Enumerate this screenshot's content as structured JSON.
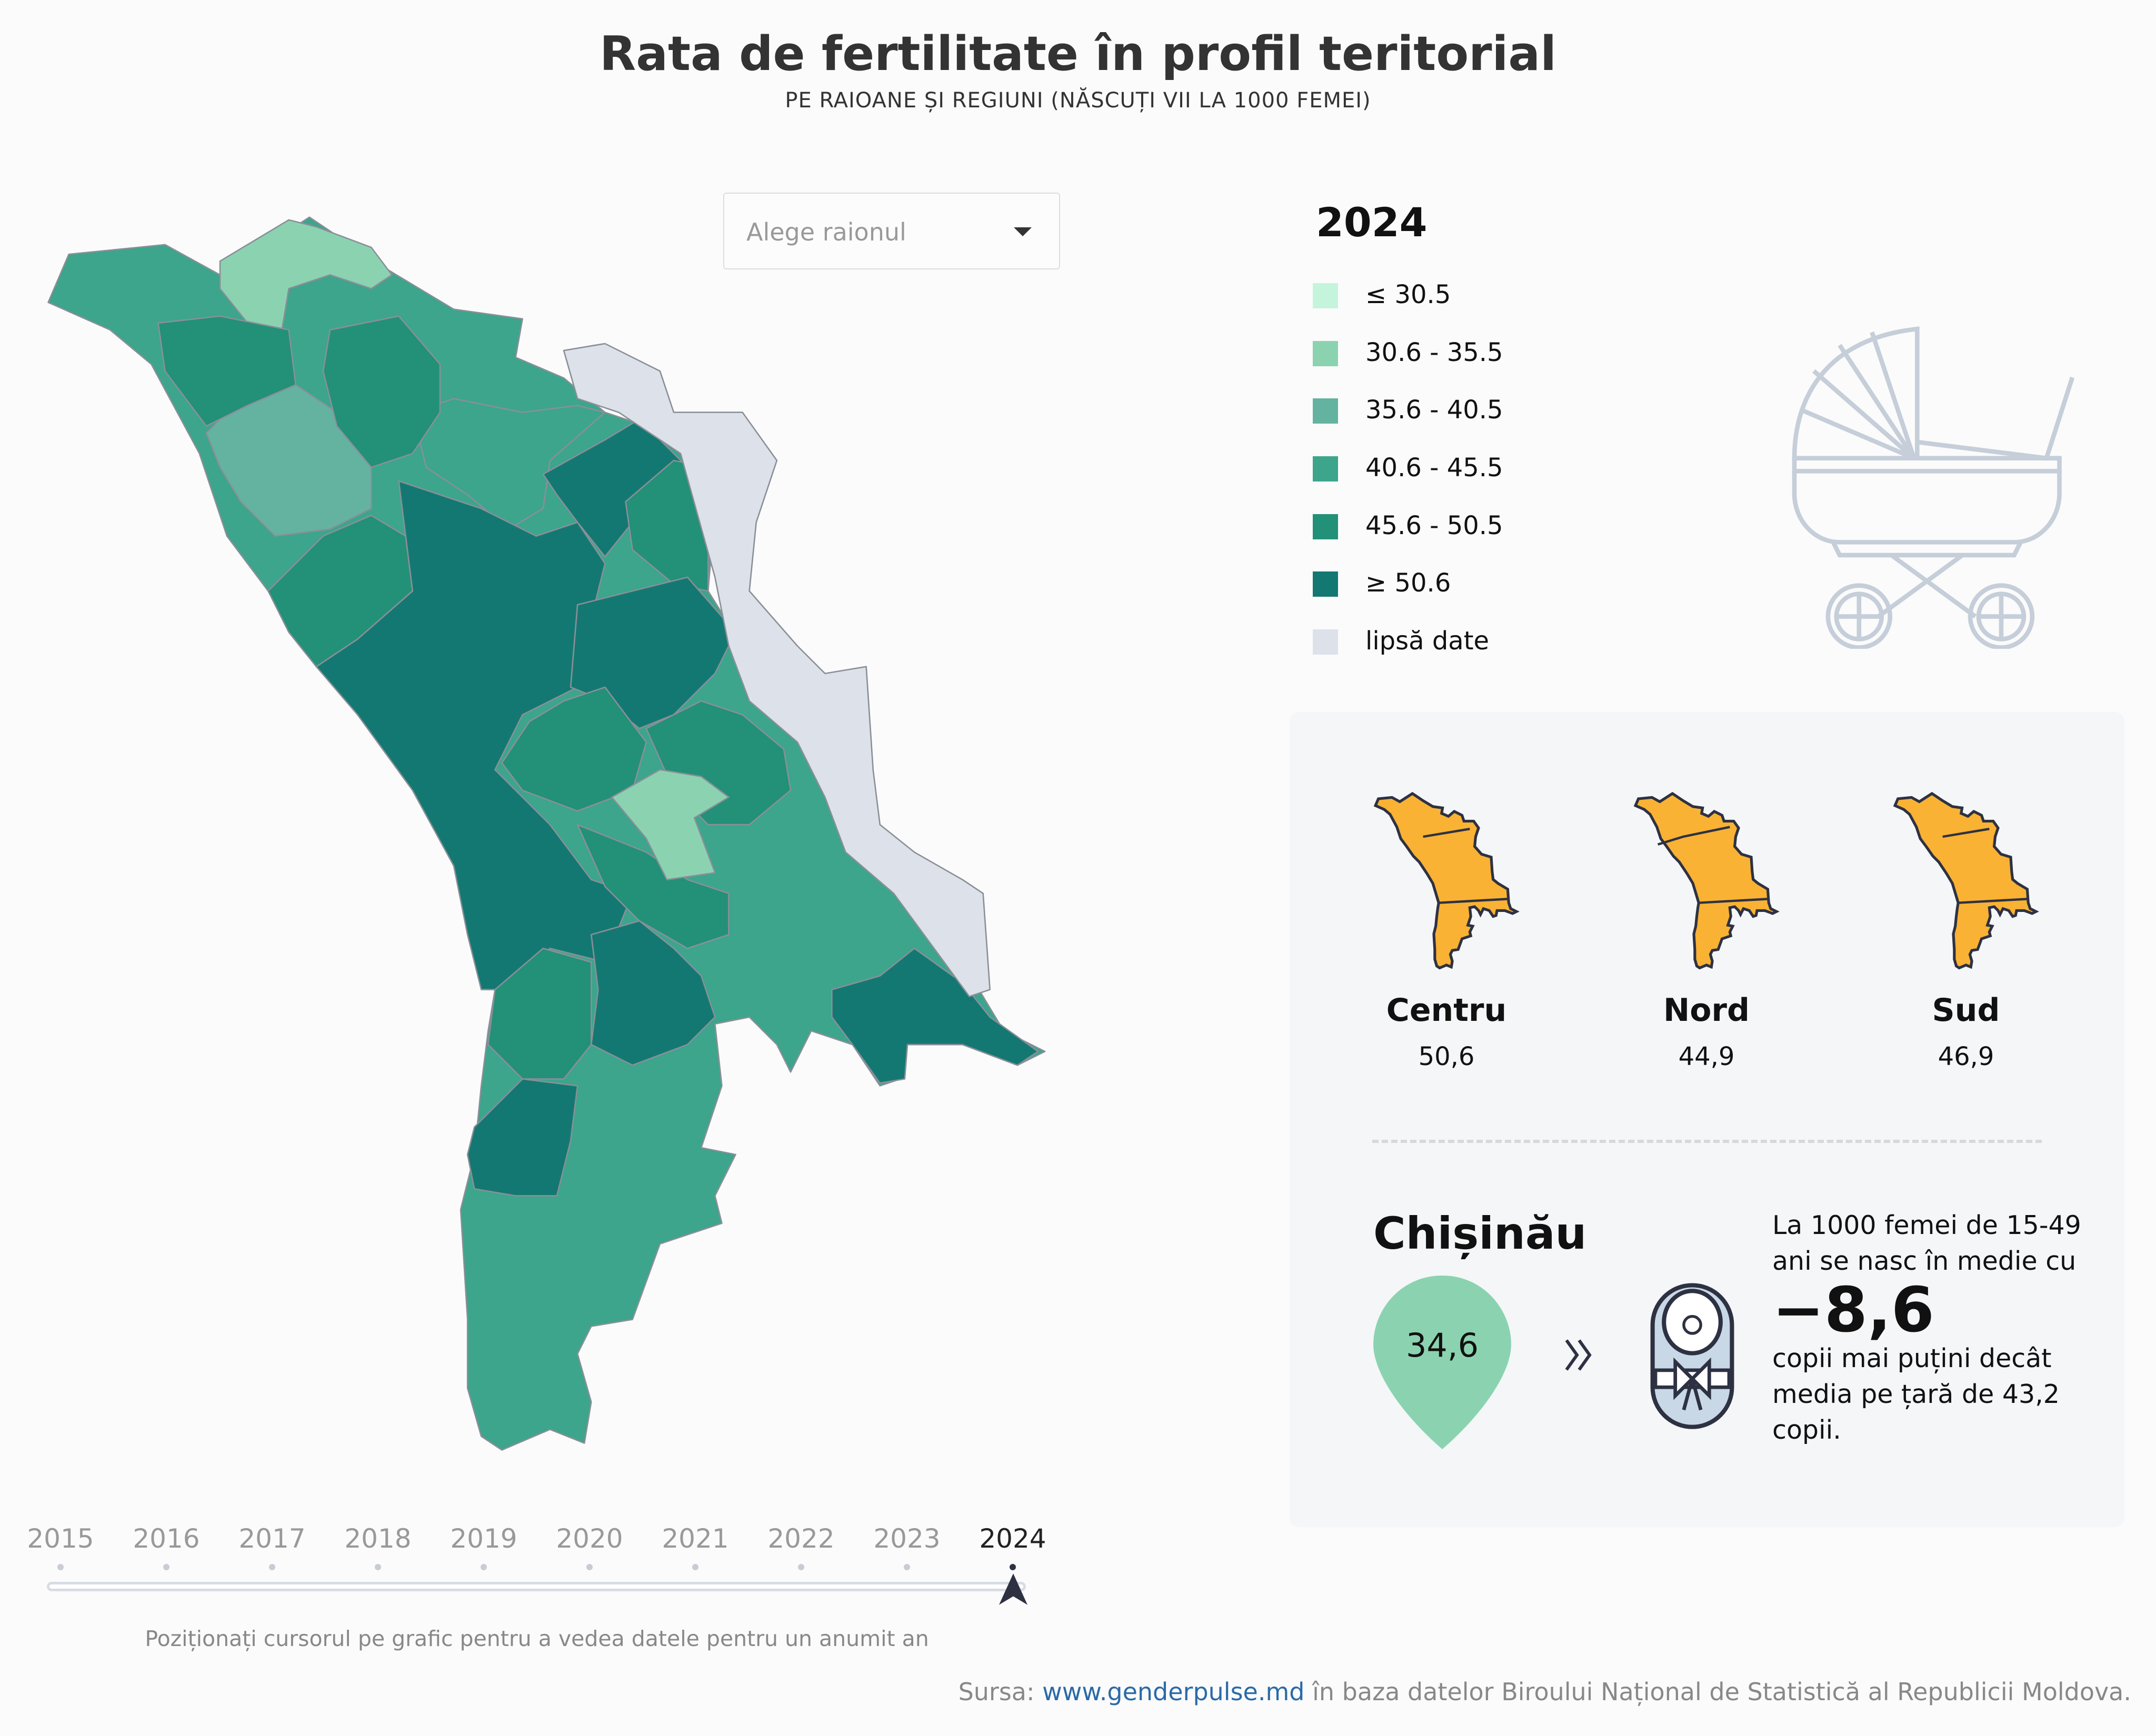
{
  "header": {
    "title": "Rata de fertilitate în profil teritorial",
    "subtitle": "PE RAIOANE ȘI REGIUNI (NĂSCUȚI VII LA 1000 FEMEI)"
  },
  "dropdown": {
    "placeholder": "Alege raionul"
  },
  "legend": {
    "year": "2024",
    "items": [
      {
        "label": "≤ 30.5",
        "color": "#c4f5dc"
      },
      {
        "label": "30.6 - 35.5",
        "color": "#8bd3b0"
      },
      {
        "label": "35.6 - 40.5",
        "color": "#63b3a0"
      },
      {
        "label": "40.6 - 45.5",
        "color": "#3ca58c"
      },
      {
        "label": "45.6 - 50.5",
        "color": "#239078"
      },
      {
        "label": "≥ 50.6",
        "color": "#147872"
      },
      {
        "label": "lipsă date",
        "color": "#dde1ea"
      }
    ]
  },
  "regions": [
    {
      "name": "Centru",
      "value": "50,6"
    },
    {
      "name": "Nord",
      "value": "44,9"
    },
    {
      "name": "Sud",
      "value": "46,9"
    }
  ],
  "highlight_color": "#f9b233",
  "city": {
    "name": "Chișinău",
    "value": "34,6",
    "color": "#8bd3b0",
    "text_line1": "La 1000 femei de 15-49",
    "text_line2": "ani se nasc în medie cu",
    "difference": "−8,6",
    "text_line3": "copii mai puțini decât",
    "text_line4": "media pe țară de 43,2",
    "text_line5": "copii."
  },
  "timeline": {
    "years": [
      "2015",
      "2016",
      "2017",
      "2018",
      "2019",
      "2020",
      "2021",
      "2022",
      "2023",
      "2024"
    ],
    "selected": "2024",
    "hint": "Poziționați cursorul pe grafic pentru a vedea datele pentru un anumit an"
  },
  "source": {
    "prefix": "Sursa: ",
    "link": "www.genderpulse.md",
    "suffix": " în baza datelor Biroului Național de Statistică al Republicii Moldova."
  }
}
